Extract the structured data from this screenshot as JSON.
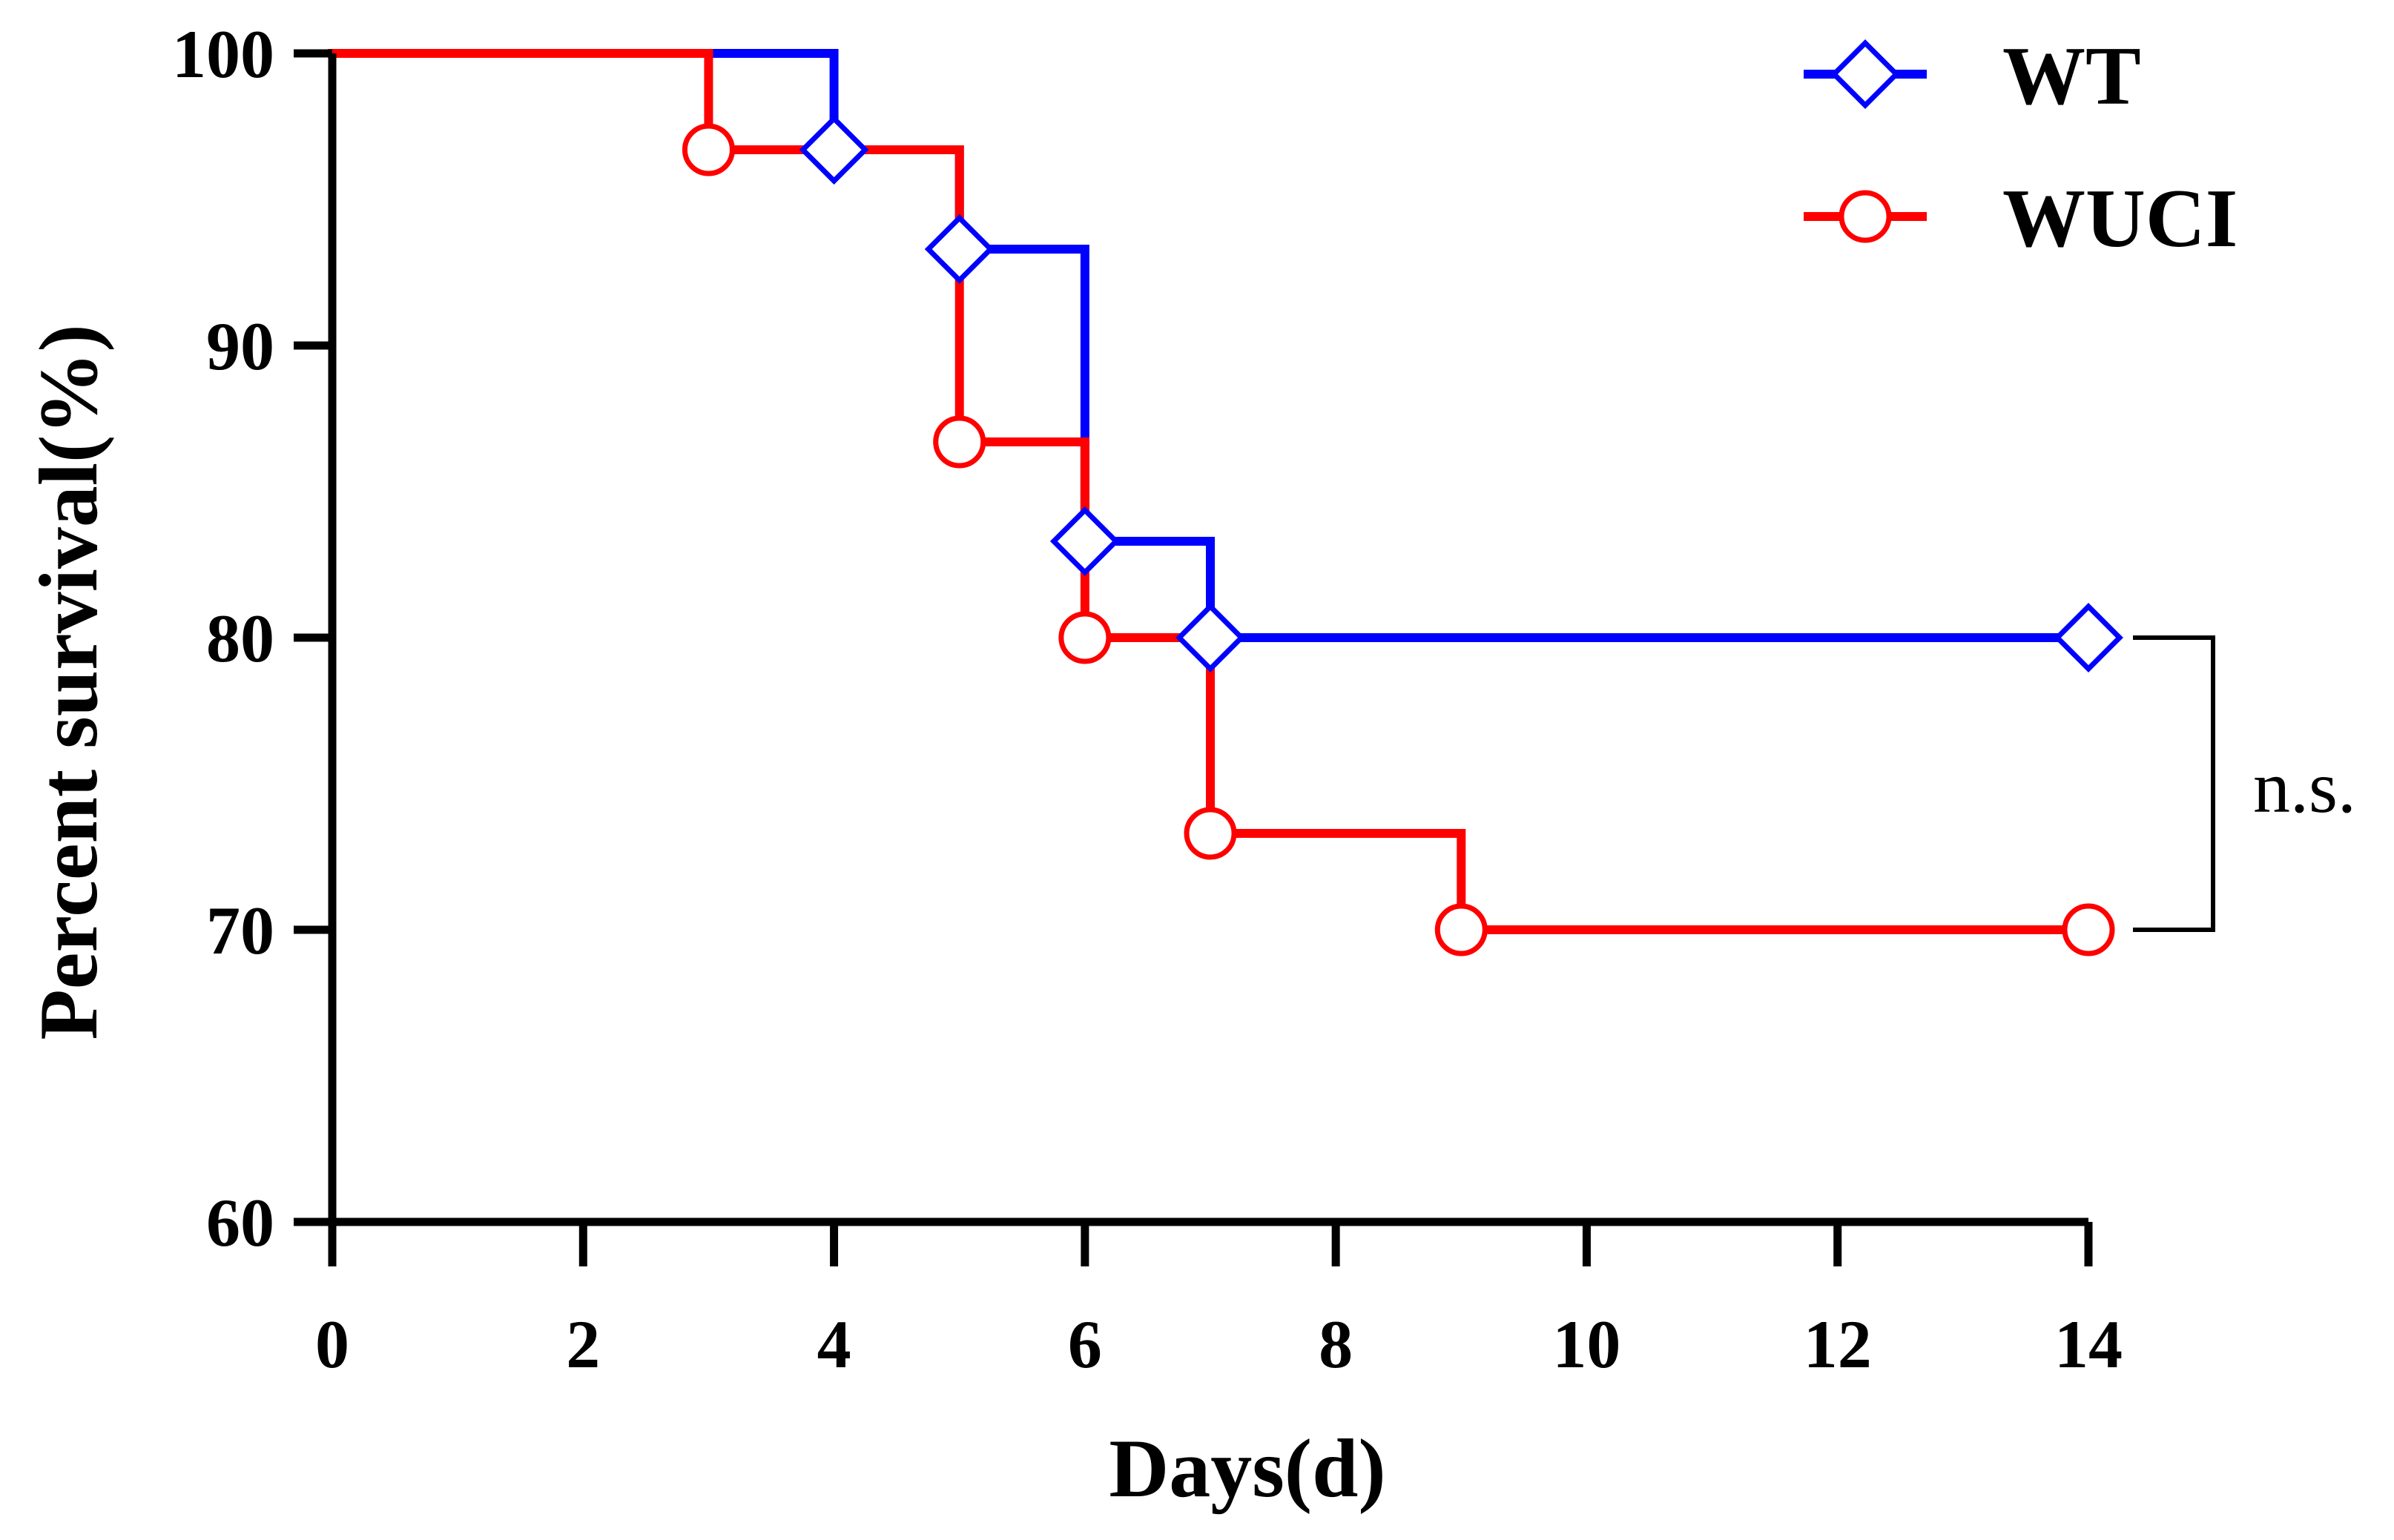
{
  "chart_data": {
    "type": "line",
    "subtype": "kaplan-meier-step",
    "xlabel": "Days(d)",
    "ylabel": "Percent survival(%)",
    "xlim": [
      0,
      14
    ],
    "ylim": [
      60,
      100
    ],
    "xticks": [
      0,
      2,
      4,
      6,
      8,
      10,
      12,
      14
    ],
    "yticks": [
      60,
      70,
      80,
      90,
      100
    ],
    "grid": false,
    "legend_position": "top-right",
    "series": [
      {
        "name": "WT",
        "color": "#0000ff",
        "marker": "diamond",
        "steps": [
          [
            0,
            100
          ],
          [
            4,
            96.7
          ],
          [
            5,
            93.3
          ],
          [
            6,
            83.3
          ],
          [
            7,
            80
          ],
          [
            14,
            80
          ]
        ],
        "markers": [
          [
            4,
            96.7
          ],
          [
            5,
            93.3
          ],
          [
            6,
            83.3
          ],
          [
            7,
            80
          ],
          [
            14,
            80
          ]
        ]
      },
      {
        "name": "WUCI",
        "color": "#ff0000",
        "marker": "circle",
        "steps": [
          [
            0,
            100
          ],
          [
            3,
            96.7
          ],
          [
            5,
            86.7
          ],
          [
            6,
            80
          ],
          [
            7,
            73.3
          ],
          [
            9,
            70
          ],
          [
            14,
            70
          ]
        ],
        "markers": [
          [
            3,
            96.7
          ],
          [
            5,
            86.7
          ],
          [
            6,
            80
          ],
          [
            7,
            73.3
          ],
          [
            9,
            70
          ],
          [
            14,
            70
          ]
        ]
      }
    ],
    "annotation": {
      "text": "n.s.",
      "between": [
        "WT",
        "WUCI"
      ],
      "y_values": [
        80,
        70
      ],
      "x": 14
    }
  }
}
